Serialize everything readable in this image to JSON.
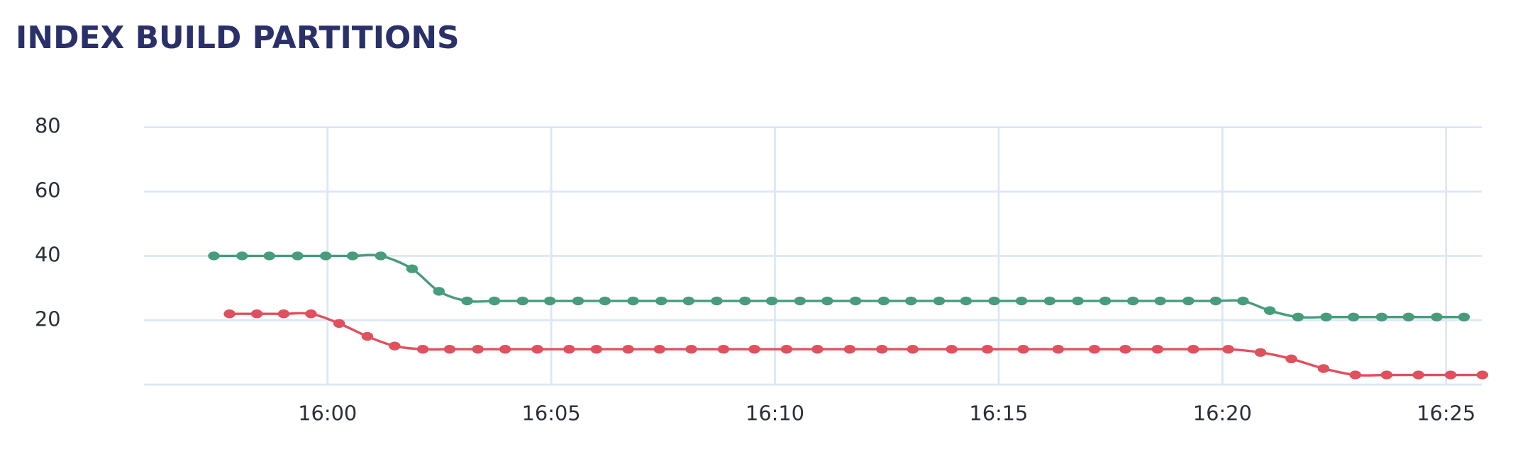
{
  "chart_data": {
    "type": "line",
    "title": "INDEX BUILD PARTITIONS",
    "xlim": [
      955.9,
      985.8
    ],
    "xticks": [
      {
        "value": 960,
        "label": "16:00"
      },
      {
        "value": 965,
        "label": "16:05"
      },
      {
        "value": 970,
        "label": "16:10"
      },
      {
        "value": 975,
        "label": "16:15"
      },
      {
        "value": 980,
        "label": "16:20"
      },
      {
        "value": 985,
        "label": "16:25"
      }
    ],
    "ylim": [
      0,
      80
    ],
    "yticks": [
      20,
      40,
      60,
      80
    ],
    "grid": true,
    "series": [
      {
        "color": "#479c7b",
        "x": [
          957.46,
          958.09,
          958.7,
          959.33,
          959.96,
          960.56,
          961.19,
          961.89,
          962.49,
          963.12,
          963.73,
          964.36,
          964.97,
          965.6,
          966.2,
          966.83,
          967.46,
          968.07,
          968.7,
          969.33,
          969.93,
          970.56,
          971.17,
          971.8,
          972.43,
          973.04,
          973.67,
          974.27,
          974.9,
          975.51,
          976.14,
          976.77,
          977.38,
          978.0,
          978.61,
          979.24,
          979.85,
          980.46,
          981.06,
          981.69,
          982.32,
          982.93,
          983.56,
          984.16,
          984.79,
          985.4
        ],
        "values": [
          40,
          40,
          40,
          40,
          40,
          40,
          40,
          36,
          29,
          26,
          26,
          26,
          26,
          26,
          26,
          26,
          26,
          26,
          26,
          26,
          26,
          26,
          26,
          26,
          26,
          26,
          26,
          26,
          26,
          26,
          26,
          26,
          26,
          26,
          26,
          26,
          26,
          26,
          23,
          21,
          21,
          21,
          21,
          21,
          21,
          21
        ]
      },
      {
        "color": "#e0505d",
        "x": [
          957.81,
          958.42,
          959.02,
          959.63,
          960.26,
          960.89,
          961.5,
          962.13,
          962.73,
          963.36,
          963.97,
          964.69,
          965.4,
          966.01,
          966.72,
          967.42,
          968.13,
          968.85,
          969.54,
          970.26,
          970.95,
          971.67,
          972.39,
          973.08,
          973.95,
          974.75,
          975.55,
          976.33,
          977.14,
          977.83,
          978.55,
          979.35,
          980.13,
          980.85,
          981.54,
          982.26,
          982.97,
          983.67,
          984.38,
          985.1,
          985.81
        ],
        "values": [
          22,
          22,
          22,
          22,
          19,
          15,
          12,
          11,
          11,
          11,
          11,
          11,
          11,
          11,
          11,
          11,
          11,
          11,
          11,
          11,
          11,
          11,
          11,
          11,
          11,
          11,
          11,
          11,
          11,
          11,
          11,
          11,
          11,
          10,
          8,
          5,
          3,
          3,
          3,
          3,
          3
        ]
      }
    ]
  }
}
